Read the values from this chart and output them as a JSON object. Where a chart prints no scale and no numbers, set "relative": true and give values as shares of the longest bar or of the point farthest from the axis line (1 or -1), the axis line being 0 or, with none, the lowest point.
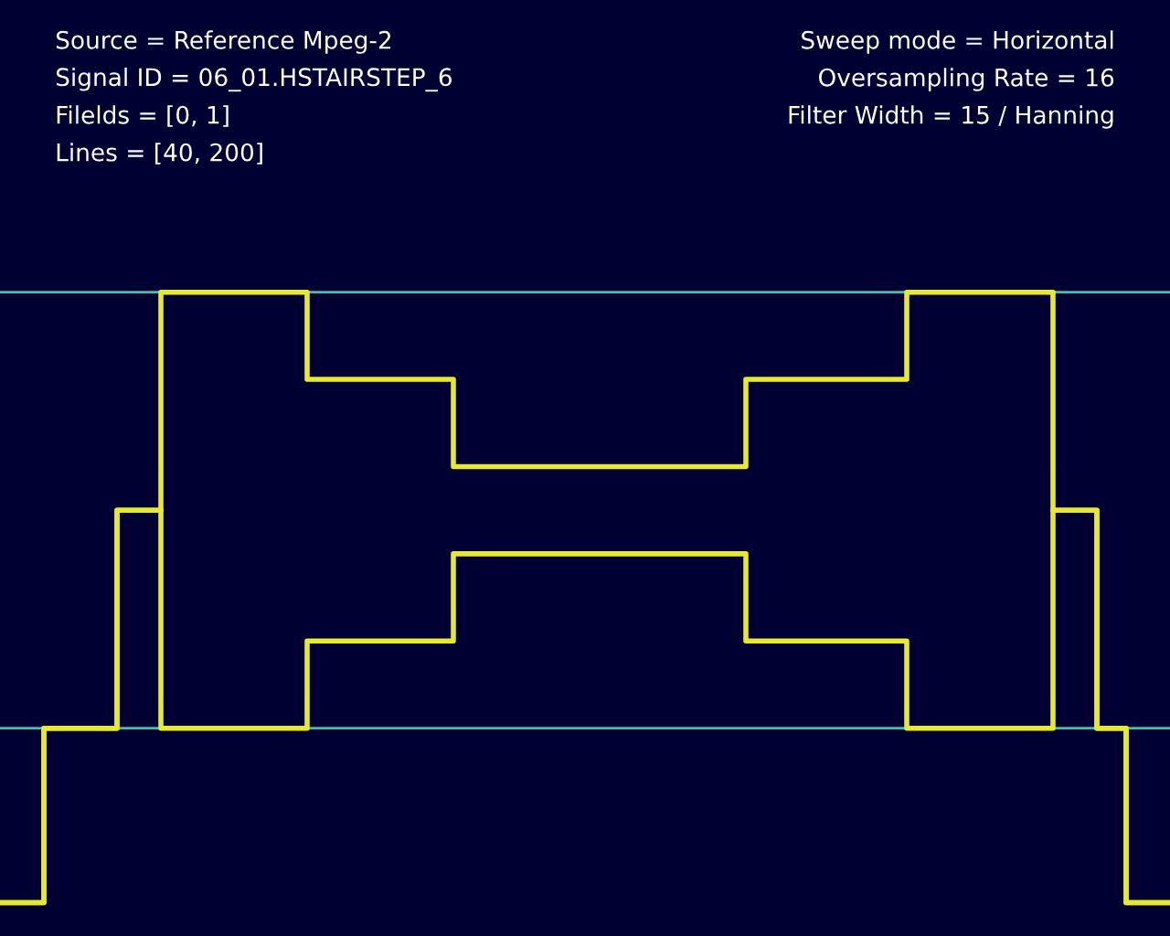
{
  "chart_data": {
    "type": "step",
    "relative": true,
    "ref_lines": [
      {
        "axis": "y",
        "value": 0,
        "color": "#40c0b0"
      },
      {
        "axis": "y",
        "value": 1,
        "color": "#40c0b0"
      }
    ],
    "annotations": [
      "Source = Reference Mpeg-2",
      "Signal ID = 06_01.HSTAIRSTEP_6",
      "Filelds = [0, 1]",
      "Lines = [40, 200]",
      "Sweep mode = Horizontal",
      "Oversampling Rate = 16",
      "Filter Width = 15 / Hanning"
    ],
    "categories": [
      null,
      null,
      null,
      null,
      null,
      null,
      null,
      null,
      null,
      null,
      null,
      null,
      null,
      null,
      null,
      null,
      null,
      null,
      null,
      null,
      null,
      null,
      null,
      null,
      null,
      null,
      null,
      null,
      null,
      null,
      null,
      null,
      null,
      null,
      null,
      null,
      null,
      null,
      null,
      null,
      null,
      null,
      null,
      null,
      null,
      null,
      null,
      null,
      null,
      null,
      null,
      null,
      null,
      null,
      null,
      null,
      null,
      null,
      null,
      null,
      null,
      null,
      null,
      null,
      null,
      null,
      null,
      null,
      null,
      null,
      null,
      null,
      null,
      null,
      null,
      null,
      null,
      null,
      null,
      null,
      null
    ],
    "series": [
      {
        "color": "#e8e830",
        "values": [
          -0.4,
          -0.4,
          -0.4,
          0,
          0,
          0,
          0,
          0,
          0.5,
          0.5,
          0.5,
          1,
          1,
          1,
          1,
          1,
          1,
          1,
          1,
          1,
          1,
          0.8,
          0.8,
          0.8,
          0.8,
          0.8,
          0.8,
          0.8,
          0.8,
          0.8,
          0.8,
          0.6,
          0.6,
          0.6,
          0.6,
          0.6,
          0.6,
          0.6,
          0.6,
          0.6,
          0.6,
          0.6,
          0.6,
          0.6,
          0.6,
          0.6,
          0.6,
          0.6,
          0.6,
          0.6,
          0.6,
          0.8,
          0.8,
          0.8,
          0.8,
          0.8,
          0.8,
          0.8,
          0.8,
          0.8,
          0.8,
          0.8,
          1,
          1,
          1,
          1,
          1,
          1,
          1,
          1,
          1,
          1,
          0.5,
          0.5,
          0.5,
          0,
          0,
          -0.4,
          -0.4,
          -0.4,
          -0.4
        ]
      },
      {
        "color": "#e8e830",
        "values": [
          -0.4,
          -0.4,
          -0.4,
          0,
          0,
          0,
          0,
          0,
          0.5,
          0.5,
          0.5,
          0,
          0,
          0,
          0,
          0,
          0,
          0,
          0,
          0,
          0,
          0.2,
          0.2,
          0.2,
          0.2,
          0.2,
          0.2,
          0.2,
          0.2,
          0.2,
          0.2,
          0.4,
          0.4,
          0.4,
          0.4,
          0.4,
          0.4,
          0.4,
          0.4,
          0.4,
          0.4,
          0.4,
          0.4,
          0.4,
          0.4,
          0.4,
          0.4,
          0.4,
          0.4,
          0.4,
          0.4,
          0.2,
          0.2,
          0.2,
          0.2,
          0.2,
          0.2,
          0.2,
          0.2,
          0.2,
          0.2,
          0.2,
          0,
          0,
          0,
          0,
          0,
          0,
          0,
          0,
          0,
          0,
          0.5,
          0.5,
          0.5,
          0,
          0,
          -0.4,
          -0.4,
          -0.4,
          -0.4
        ]
      }
    ]
  }
}
